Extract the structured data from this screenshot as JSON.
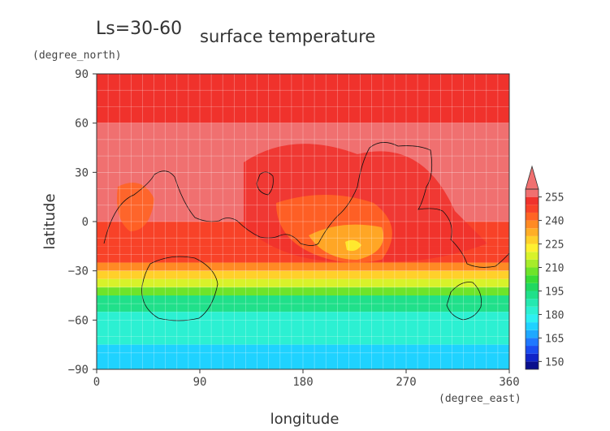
{
  "chart_data": {
    "type": "heatmap",
    "title": "surface temperature",
    "subtitle": "Ls=30-60",
    "xlabel": "longitude",
    "ylabel": "latitude",
    "x_unit": "(degree_east)",
    "y_unit": "(degree_north)",
    "xlim": [
      0,
      360
    ],
    "ylim": [
      -90,
      90
    ],
    "x_ticks": [
      "0",
      "90",
      "180",
      "270",
      "360"
    ],
    "y_ticks": [
      "90",
      "60",
      "30",
      "0",
      "−30",
      "−60",
      "−90"
    ],
    "grid": true,
    "colorbar": {
      "levels": [
        145,
        150,
        155,
        160,
        165,
        170,
        175,
        180,
        185,
        190,
        195,
        200,
        205,
        210,
        215,
        220,
        225,
        230,
        235,
        240,
        245,
        250,
        255,
        260
      ],
      "tick_labels": [
        "150",
        "165",
        "180",
        "195",
        "210",
        "225",
        "240",
        "255"
      ],
      "colors": [
        "#0a0f8c",
        "#1024c8",
        "#1a4cf0",
        "#1f78ff",
        "#1fa8ff",
        "#1fd2ff",
        "#2df0f2",
        "#2cf0d2",
        "#25e8b0",
        "#20e08a",
        "#20d860",
        "#38dc36",
        "#6ee42a",
        "#a6ec2a",
        "#d8f22a",
        "#fff030",
        "#ffd02a",
        "#ffae26",
        "#ff8a24",
        "#ff6424",
        "#f84228",
        "#f0322c",
        "#f07070"
      ],
      "extend": "max"
    },
    "latitude_bands": [
      {
        "lat": [
          60,
          90
        ],
        "temperature": 250
      },
      {
        "lat": [
          30,
          60
        ],
        "temperature": 265
      },
      {
        "lat": [
          0,
          30
        ],
        "temperature": 262
      },
      {
        "lat": [
          -15,
          0
        ],
        "temperature": 248
      },
      {
        "lat": [
          -25,
          -15
        ],
        "temperature": 245
      },
      {
        "lat": [
          -30,
          -25
        ],
        "temperature": 238
      },
      {
        "lat": [
          -35,
          -30
        ],
        "temperature": 228
      },
      {
        "lat": [
          -40,
          -35
        ],
        "temperature": 218
      },
      {
        "lat": [
          -45,
          -40
        ],
        "temperature": 205
      },
      {
        "lat": [
          -55,
          -45
        ],
        "temperature": 193
      },
      {
        "lat": [
          -75,
          -55
        ],
        "temperature": 183
      },
      {
        "lat": [
          -90,
          -75
        ],
        "temperature": 173
      }
    ]
  }
}
